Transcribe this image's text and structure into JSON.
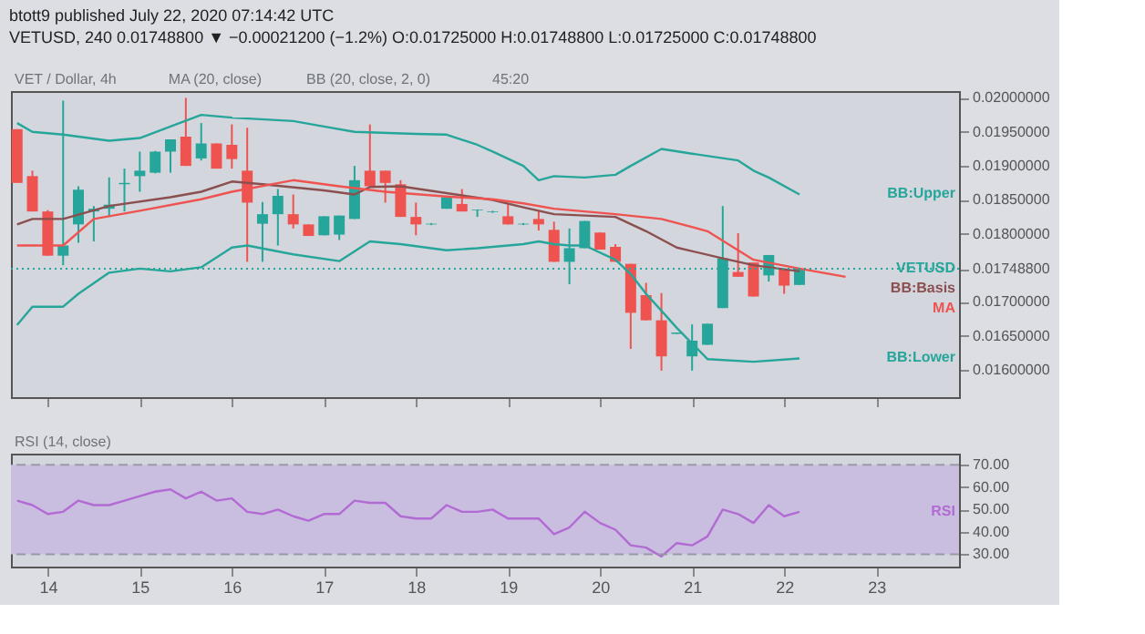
{
  "chart_data": [
    {
      "type": "candlestick",
      "title": "btott9 published July 22, 2020 07:14:42 UTC",
      "subtitle": "VETUSD, 240 0.01748800 ▼ −0.00021200 (−1.2%) O:0.01725000 H:0.01748800 L:0.01725000 C:0.01748800",
      "annotations": [
        "VET / Dollar, 4h",
        "MA (20, close)",
        "BB (20, close, 2, 0)",
        "45:20"
      ],
      "x": [
        13.667,
        13.833,
        14,
        14.167,
        14.333,
        14.5,
        14.667,
        14.833,
        15,
        15.167,
        15.333,
        15.5,
        15.667,
        15.833,
        16,
        16.167,
        16.333,
        16.5,
        16.667,
        16.833,
        17,
        17.167,
        17.333,
        17.5,
        17.667,
        17.833,
        18,
        18.167,
        18.333,
        18.5,
        18.667,
        18.833,
        19,
        19.167,
        19.333,
        19.5,
        19.667,
        19.833,
        20,
        20.167,
        20.333,
        20.5,
        20.667,
        20.833,
        21,
        21.167,
        21.333,
        21.5,
        21.667,
        21.833,
        22,
        22.167
      ],
      "ohlc": [
        [
          0.01954,
          0.01954,
          0.01875,
          0.01875
        ],
        [
          0.01885,
          0.01893,
          0.01833,
          0.01833
        ],
        [
          0.01833,
          0.01835,
          0.01768,
          0.01768
        ],
        [
          0.01768,
          0.01996,
          0.01754,
          0.01783
        ],
        [
          0.01814,
          0.0187,
          0.01787,
          0.01865
        ],
        [
          0.01833,
          0.01841,
          0.01789,
          0.01837
        ],
        [
          0.01837,
          0.01883,
          0.01825,
          0.01843
        ],
        [
          0.01873,
          0.01896,
          0.01833,
          0.01875
        ],
        [
          0.01885,
          0.01921,
          0.01862,
          0.01893
        ],
        [
          0.0189,
          0.01922,
          0.01889,
          0.01921
        ],
        [
          0.01921,
          0.01939,
          0.0189,
          0.01939
        ],
        [
          0.01943,
          0.02,
          0.019,
          0.019
        ],
        [
          0.01911,
          0.01963,
          0.01908,
          0.01933
        ],
        [
          0.01933,
          0.01933,
          0.01896,
          0.01896
        ],
        [
          0.01931,
          0.01961,
          0.01896,
          0.0191
        ],
        [
          0.01893,
          0.01956,
          0.01759,
          0.01846
        ],
        [
          0.01815,
          0.01847,
          0.01759,
          0.01829
        ],
        [
          0.01829,
          0.01866,
          0.01783,
          0.01856
        ],
        [
          0.01829,
          0.01858,
          0.01808,
          0.01814
        ],
        [
          0.01814,
          0.01814,
          0.01797,
          0.01797
        ],
        [
          0.01798,
          0.01826,
          0.01798,
          0.01826
        ],
        [
          0.01799,
          0.01827,
          0.01791,
          0.01827
        ],
        [
          0.01822,
          0.019,
          0.01822,
          0.01879
        ],
        [
          0.01893,
          0.01961,
          0.0187,
          0.0187
        ],
        [
          0.01893,
          0.01893,
          0.01846,
          0.01875
        ],
        [
          0.01873,
          0.01879,
          0.01825,
          0.01825
        ],
        [
          0.01825,
          0.01846,
          0.01798,
          0.01814
        ],
        [
          0.01814,
          0.01816,
          0.01813,
          0.01815
        ],
        [
          0.01837,
          0.01854,
          0.01837,
          0.01854
        ],
        [
          0.01844,
          0.01866,
          0.01833,
          0.01833
        ],
        [
          0.01835,
          0.01836,
          0.01825,
          0.01836
        ],
        [
          0.01832,
          0.01834,
          0.01831,
          0.01833
        ],
        [
          0.01826,
          0.01843,
          0.01814,
          0.01814
        ],
        [
          0.01814,
          0.01816,
          0.01813,
          0.01815
        ],
        [
          0.01822,
          0.01833,
          0.01805,
          0.01814
        ],
        [
          0.01806,
          0.01818,
          0.01759,
          0.01759
        ],
        [
          0.01759,
          0.01808,
          0.01726,
          0.01779
        ],
        [
          0.01779,
          0.01819,
          0.01779,
          0.01819
        ],
        [
          0.01802,
          0.01802,
          0.01777,
          0.01777
        ],
        [
          0.01781,
          0.01785,
          0.01759,
          0.01759
        ],
        [
          0.01756,
          0.01756,
          0.01631,
          0.01684
        ],
        [
          0.0171,
          0.01728,
          0.01673,
          0.01673
        ],
        [
          0.01673,
          0.01713,
          0.01599,
          0.0162
        ],
        [
          0.01653,
          0.01655,
          0.01653,
          0.01655
        ],
        [
          0.0162,
          0.01667,
          0.01599,
          0.01643
        ],
        [
          0.01637,
          0.01668,
          0.01637,
          0.01668
        ],
        [
          0.01691,
          0.01841,
          0.01691,
          0.01764
        ],
        [
          0.01744,
          0.01801,
          0.01737,
          0.01737
        ],
        [
          0.01758,
          0.01758,
          0.01708,
          0.01708
        ],
        [
          0.01739,
          0.01769,
          0.0173,
          0.01769
        ],
        [
          0.01748,
          0.01748,
          0.01712,
          0.01724
        ],
        [
          0.01725,
          0.017488,
          0.01725,
          0.017488
        ]
      ],
      "colors": [
        "#ef5350",
        "#ef5350",
        "#ef5350",
        "#26a69a",
        "#26a69a",
        "#26a69a",
        "#26a69a",
        "#26a69a",
        "#26a69a",
        "#26a69a",
        "#26a69a",
        "#ef5350",
        "#26a69a",
        "#ef5350",
        "#ef5350",
        "#ef5350",
        "#26a69a",
        "#26a69a",
        "#ef5350",
        "#ef5350",
        "#26a69a",
        "#26a69a",
        "#26a69a",
        "#ef5350",
        "#ef5350",
        "#ef5350",
        "#ef5350",
        "#26a69a",
        "#26a69a",
        "#ef5350",
        "#26a69a",
        "#26a69a",
        "#ef5350",
        "#26a69a",
        "#ef5350",
        "#ef5350",
        "#26a69a",
        "#26a69a",
        "#ef5350",
        "#ef5350",
        "#ef5350",
        "#ef5350",
        "#ef5350",
        "#26a69a",
        "#26a69a",
        "#26a69a",
        "#26a69a",
        "#ef5350",
        "#ef5350",
        "#26a69a",
        "#ef5350",
        "#26a69a"
      ],
      "series": [
        {
          "name": "BB:Upper",
          "type": "line",
          "color": "#26a69a",
          "x": [
            13.667,
            13.833,
            14.167,
            14.667,
            15,
            15.333,
            15.667,
            16,
            16.667,
            17,
            17.333,
            18,
            18.333,
            18.667,
            18.833,
            19.167,
            19.333,
            19.5,
            19.833,
            20.167,
            20.333,
            20.667,
            21,
            21.5,
            21.667,
            21.833,
            22.167
          ],
          "values": [
            0.01963,
            0.0195,
            0.01946,
            0.01937,
            0.01941,
            0.01958,
            0.01975,
            0.01971,
            0.01966,
            0.01958,
            0.0195,
            0.01947,
            0.01946,
            0.01931,
            0.01921,
            0.019,
            0.01879,
            0.01885,
            0.01883,
            0.01887,
            0.019,
            0.01925,
            0.01918,
            0.01908,
            0.01893,
            0.01883,
            0.01858
          ]
        },
        {
          "name": "BB:Basis",
          "type": "line",
          "color": "#8b4f4f",
          "x": [
            13.667,
            13.833,
            14.167,
            14.667,
            15.333,
            15.667,
            16,
            16.333,
            17,
            17.333,
            17.5,
            17.833,
            18.333,
            18.833,
            19.167,
            19.5,
            20.167,
            20.5,
            20.833,
            21.333,
            21.667,
            22.167
          ],
          "values": [
            0.01814,
            0.01822,
            0.01822,
            0.01841,
            0.01854,
            0.01862,
            0.01877,
            0.01873,
            0.01864,
            0.01858,
            0.01869,
            0.0187,
            0.0186,
            0.0185,
            0.01839,
            0.01829,
            0.01825,
            0.01804,
            0.0178,
            0.01764,
            0.01754,
            0.01745
          ]
        },
        {
          "name": "MA",
          "type": "line",
          "color": "#ef5350",
          "x": [
            13.667,
            14.167,
            14.5,
            15,
            15.667,
            16,
            16.667,
            17.167,
            17.667,
            18.333,
            18.833,
            19.167,
            19.5,
            20.167,
            20.667,
            21.167,
            21.667,
            22.167,
            22.667
          ],
          "values": [
            0.01783,
            0.01783,
            0.01822,
            0.01834,
            0.01851,
            0.01862,
            0.01879,
            0.0187,
            0.01862,
            0.01855,
            0.01851,
            0.01845,
            0.01837,
            0.01829,
            0.01822,
            0.01804,
            0.01762,
            0.01749,
            0.01737
          ]
        },
        {
          "name": "BB:Lower",
          "type": "line",
          "color": "#26a69a",
          "x": [
            13.667,
            13.833,
            14.167,
            14.333,
            14.667,
            15,
            15.333,
            15.667,
            16,
            16.167,
            16.667,
            17.167,
            17.5,
            17.833,
            18.333,
            18.667,
            19.167,
            19.333,
            19.5,
            19.667,
            19.833,
            20.167,
            20.333,
            20.5,
            20.667,
            20.833,
            21.167,
            21.667,
            22.167
          ],
          "values": [
            0.01666,
            0.01693,
            0.01693,
            0.01712,
            0.01743,
            0.01749,
            0.01745,
            0.01751,
            0.0178,
            0.01783,
            0.0177,
            0.0176,
            0.01789,
            0.01785,
            0.01776,
            0.01779,
            0.01785,
            0.01789,
            0.01785,
            0.01783,
            0.01783,
            0.01762,
            0.01741,
            0.01712,
            0.01687,
            0.01662,
            0.01616,
            0.01612,
            0.01617
          ]
        }
      ],
      "ref_lines": [
        {
          "axis": "y",
          "value": 0.017488,
          "label": "VETUSD",
          "color": "#26a69a",
          "line_style": "dotted"
        }
      ],
      "xlim": [
        13.6,
        23.9
      ],
      "xticks": [
        14,
        15,
        16,
        17,
        18,
        19,
        20,
        21,
        22,
        23
      ],
      "ylim": [
        0.0156,
        0.0201
      ],
      "yticks": [
        {
          "value": 0.016,
          "label": "0.01600000"
        },
        {
          "value": 0.0165,
          "label": "0.01650000"
        },
        {
          "value": 0.017,
          "label": "0.01700000"
        },
        {
          "value": 0.017488,
          "label": "0.01748800"
        },
        {
          "value": 0.018,
          "label": "0.01800000"
        },
        {
          "value": 0.0185,
          "label": "0.01850000"
        },
        {
          "value": 0.019,
          "label": "0.01900000"
        },
        {
          "value": 0.0195,
          "label": "0.01950000"
        },
        {
          "value": 0.02,
          "label": "0.02000000"
        }
      ],
      "tick_labels": "y"
    },
    {
      "type": "line",
      "annotations": [
        "RSI (14, close)"
      ],
      "series": [
        {
          "name": "RSI",
          "type": "line",
          "color": "#b36bd4",
          "x": [
            13.667,
            13.833,
            14,
            14.167,
            14.333,
            14.5,
            14.667,
            14.833,
            15,
            15.167,
            15.333,
            15.5,
            15.667,
            15.833,
            16,
            16.167,
            16.333,
            16.5,
            16.667,
            16.833,
            17,
            17.167,
            17.333,
            17.5,
            17.667,
            17.833,
            18,
            18.167,
            18.333,
            18.5,
            18.667,
            18.833,
            19,
            19.167,
            19.333,
            19.5,
            19.667,
            19.833,
            20,
            20.167,
            20.333,
            20.5,
            20.667,
            20.833,
            21,
            21.167,
            21.333,
            21.5,
            21.667,
            21.833,
            22,
            22.167
          ],
          "values": [
            54,
            52,
            48,
            49,
            54,
            52,
            52,
            54,
            56,
            58,
            59,
            55,
            58,
            54,
            55,
            49,
            48,
            50,
            47,
            45,
            48,
            48,
            54,
            53,
            53,
            47,
            46,
            46,
            52,
            49,
            49,
            50,
            46,
            46,
            46,
            39,
            42,
            49,
            44,
            41,
            34,
            33,
            29,
            35,
            34,
            38,
            50,
            48,
            44,
            52,
            47,
            49
          ]
        }
      ],
      "bands": [
        {
          "axis": "y",
          "from": 30,
          "to": 70,
          "color": "#c9bde0"
        }
      ],
      "ref_lines": [
        {
          "axis": "y",
          "value": 70,
          "color": "#9a9aa6",
          "line_style": "dashed"
        },
        {
          "axis": "y",
          "value": 30,
          "color": "#9a9aa6",
          "line_style": "dashed"
        }
      ],
      "xlim": [
        13.6,
        23.9
      ],
      "xticks": [
        14,
        15,
        16,
        17,
        18,
        19,
        20,
        21,
        22,
        23
      ],
      "ylim": [
        24.5,
        75
      ],
      "yticks": [
        {
          "value": 30,
          "label": "30.00"
        },
        {
          "value": 40,
          "label": "40.00"
        },
        {
          "value": 50,
          "label": "50.00"
        },
        {
          "value": 60,
          "label": "60.00"
        },
        {
          "value": 70,
          "label": "70.00"
        }
      ]
    }
  ]
}
